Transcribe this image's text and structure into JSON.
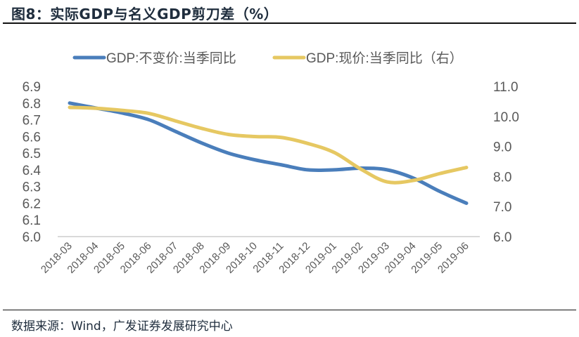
{
  "header": {
    "title": "图8：实际GDP与名义GDP剪刀差（%）"
  },
  "footer": {
    "source": "数据来源：Wind，广发证券发展研究中心"
  },
  "chart_data": {
    "type": "line",
    "title": "图8：实际GDP与名义GDP剪刀差（%）",
    "xlabel": "",
    "ylabel": "",
    "categories": [
      "2018-03",
      "2018-04",
      "2018-05",
      "2018-06",
      "2018-07",
      "2018-08",
      "2018-09",
      "2018-10",
      "2018-11",
      "2018-12",
      "2019-01",
      "2019-02",
      "2019-03",
      "2019-04",
      "2019-05",
      "2019-06"
    ],
    "series": [
      {
        "name": "GDP:不变价:当季同比",
        "axis": "left",
        "color": "#4a7ebb",
        "values": [
          6.8,
          6.77,
          6.74,
          6.7,
          6.63,
          6.56,
          6.5,
          6.46,
          6.43,
          6.4,
          6.4,
          6.41,
          6.4,
          6.35,
          6.27,
          6.2
        ]
      },
      {
        "name": "GDP:现价:当季同比（右）",
        "axis": "right",
        "color": "#e6c862",
        "values": [
          10.3,
          10.27,
          10.2,
          10.1,
          9.85,
          9.6,
          9.4,
          9.33,
          9.3,
          9.1,
          8.8,
          8.25,
          7.82,
          7.87,
          8.1,
          8.3
        ]
      }
    ],
    "y_left": {
      "range": [
        6.0,
        6.9
      ],
      "ticks": [
        "6.0",
        "6.1",
        "6.2",
        "6.3",
        "6.4",
        "6.5",
        "6.6",
        "6.7",
        "6.8",
        "6.9"
      ]
    },
    "y_right": {
      "range": [
        6.0,
        11.0
      ],
      "ticks": [
        "6.0",
        "7.0",
        "8.0",
        "9.0",
        "10.0",
        "11.0"
      ]
    },
    "grid": false,
    "legend_position": "top",
    "smooth": true
  }
}
